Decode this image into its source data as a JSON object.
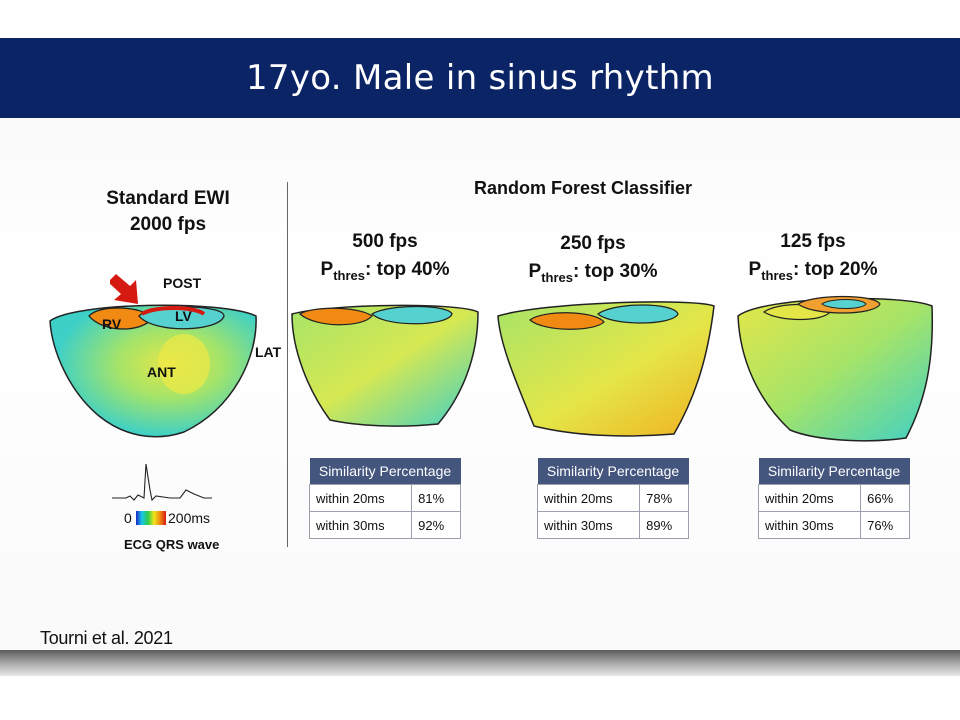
{
  "slide": {
    "title": "17yo. Male in sinus rhythm",
    "citation": "Tourni et al. 2021"
  },
  "standard": {
    "heading_line1": "Standard EWI",
    "heading_line2": "2000 fps",
    "labels": {
      "post": "POST",
      "rv": "RV",
      "lv": "LV",
      "lat": "LAT",
      "ant": "ANT"
    },
    "ecg": {
      "scale_start": "0",
      "scale_end": "200ms",
      "caption": "ECG QRS wave"
    }
  },
  "classifier_heading": "Random Forest Classifier",
  "panels": [
    {
      "fps": "500 fps",
      "p_main": "P",
      "p_sub": "thres",
      "p_rest": ": top 40%",
      "table": {
        "header": "Similarity Percentage",
        "rows": [
          {
            "label": "within 20ms",
            "value": "81%"
          },
          {
            "label": "within 30ms",
            "value": "92%"
          }
        ]
      }
    },
    {
      "fps": "250 fps",
      "p_main": "P",
      "p_sub": "thres",
      "p_rest": ": top 30%",
      "table": {
        "header": "Similarity Percentage",
        "rows": [
          {
            "label": "within 20ms",
            "value": "78%"
          },
          {
            "label": "within 30ms",
            "value": "89%"
          }
        ]
      }
    },
    {
      "fps": "125 fps",
      "p_main": "P",
      "p_sub": "thres",
      "p_rest": ": top 20%",
      "table": {
        "header": "Similarity Percentage",
        "rows": [
          {
            "label": "within 20ms",
            "value": "66%"
          },
          {
            "label": "within 30ms",
            "value": "76%"
          }
        ]
      }
    }
  ],
  "colors": {
    "title_bar": "#0b2466",
    "table_header": "#44557e",
    "heart_green": "#8ee07a",
    "heart_cyan": "#39d0c9",
    "heart_yellow": "#e2e84a",
    "heart_orange": "#f08a12",
    "arrow_red": "#d51a12"
  }
}
